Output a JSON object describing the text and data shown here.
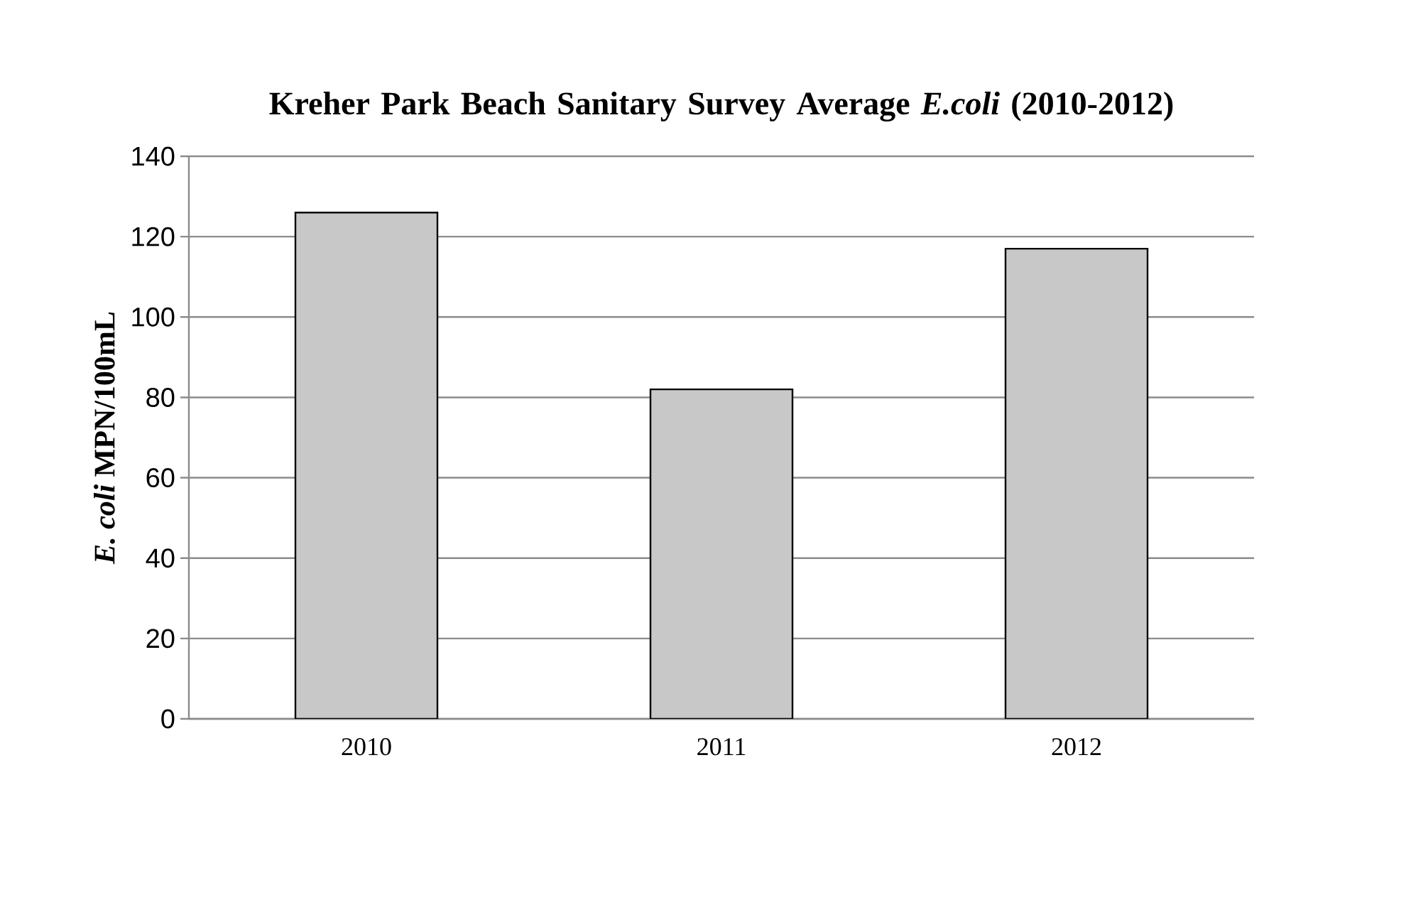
{
  "chart_data": {
    "type": "bar",
    "title": "Kreher Park Beach Sanitary Survey Average *E.coli* (2010-2012)",
    "ylabel": "*E. coli* MPN/100mL",
    "categories": [
      "2010",
      "2011",
      "2012"
    ],
    "values": [
      126,
      82,
      117
    ],
    "color": "#c8c8c8",
    "ylim": [
      0,
      140
    ],
    "yticks": [
      0,
      20,
      40,
      60,
      80,
      100,
      120,
      140
    ],
    "grid": "y"
  }
}
